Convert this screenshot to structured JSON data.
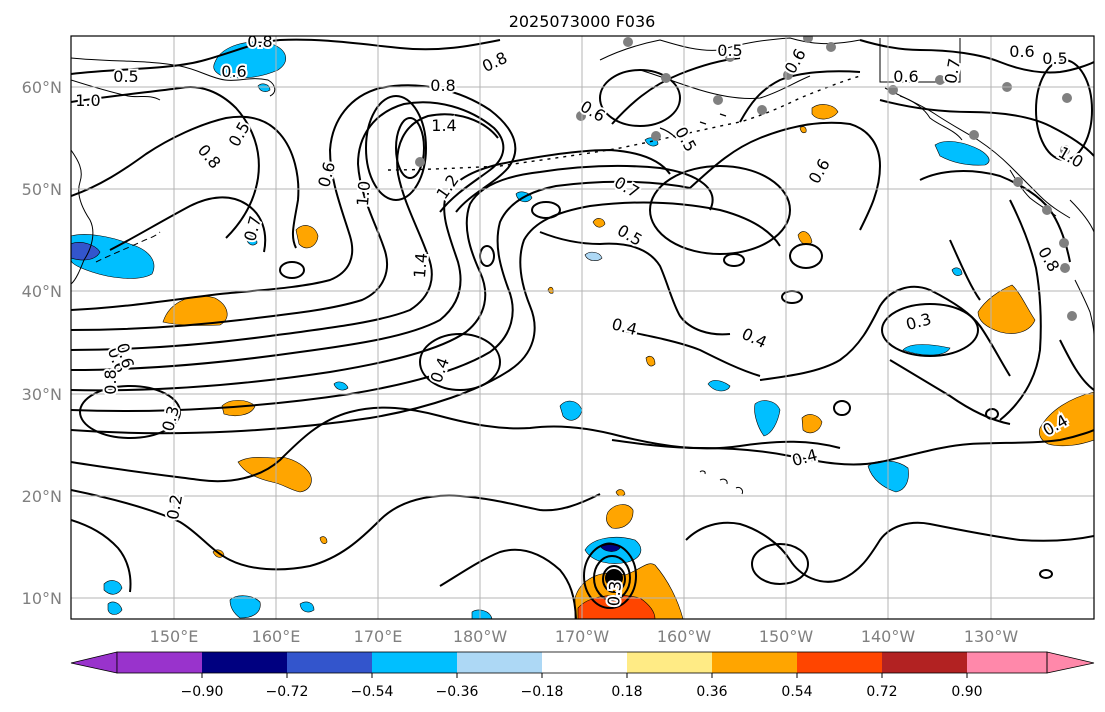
{
  "title": "2025073000 F036",
  "lat_ticks": [
    "10°N",
    "20°N",
    "30°N",
    "40°N",
    "50°N",
    "60°N"
  ],
  "lon_ticks": [
    "150°E",
    "160°E",
    "170°E",
    "180°W",
    "170°W",
    "160°W",
    "150°W",
    "140°W",
    "130°W"
  ],
  "colorbar": {
    "colors": [
      "#9933cc",
      "#000080",
      "#3355cc",
      "#00bfff",
      "#add8f5",
      "#ffffff",
      "#ffeb85",
      "#ffa500",
      "#ff4500",
      "#b22222",
      "#ff88aa"
    ],
    "tick_labels": [
      "−0.90",
      "−0.72",
      "−0.54",
      "−0.36",
      "−0.18",
      "0.18",
      "0.36",
      "0.54",
      "0.72",
      "0.90"
    ]
  },
  "contour_labels": [
    "0.5",
    "0.6",
    "0.8",
    "0.5",
    "1.0",
    "0.8",
    "1.4",
    "0.8",
    "0.5",
    "0.6",
    "0.6",
    "0.6",
    "0.5",
    "0.6",
    "0.7",
    "0.5",
    "0.6",
    "0.6",
    "0.8",
    "1.0",
    "1.0",
    "0.7",
    "1.2",
    "1.4",
    "0.7",
    "0.5",
    "0.6",
    "0.8",
    "0.4",
    "0.4",
    "0.3",
    "0.4",
    "0.6",
    "0.8",
    "0.3",
    "0.2",
    "0.4",
    "0.4",
    "0.3"
  ]
}
